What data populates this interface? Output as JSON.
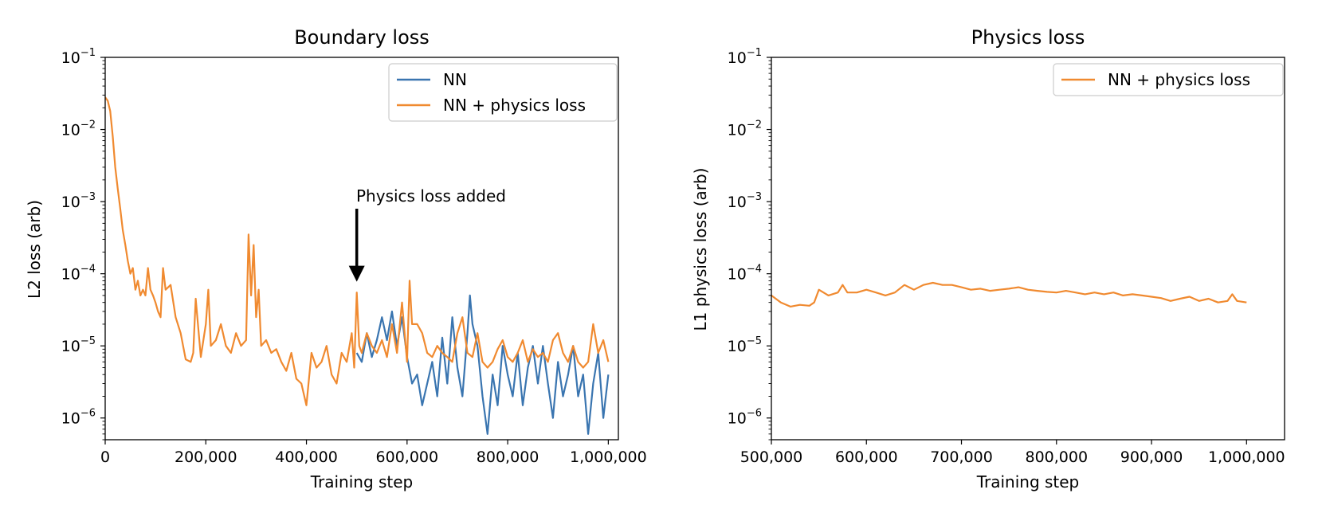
{
  "chart_data": [
    {
      "type": "line",
      "title": "Boundary loss",
      "xlabel": "Training step",
      "ylabel": "L2 loss (arb)",
      "xlim": [
        0,
        1020000
      ],
      "ylim": [
        5e-07,
        0.1
      ],
      "yscale": "log",
      "xticks": [
        0,
        200000,
        400000,
        600000,
        800000,
        1000000
      ],
      "xtick_labels": [
        "0",
        "200,000",
        "400,000",
        "600,000",
        "800,000",
        "1,000,000"
      ],
      "yticks": [
        -6,
        -5,
        -4,
        -3,
        -2,
        -1
      ],
      "ytick_base": "10",
      "legend_position": "top-right",
      "annotation": {
        "text": "Physics loss added",
        "x": 500000,
        "y": 0.0001
      },
      "series": [
        {
          "name": "NN",
          "color": "#3a75b0",
          "x": [
            500000,
            510000,
            520000,
            530000,
            540000,
            550000,
            560000,
            570000,
            580000,
            590000,
            600000,
            610000,
            620000,
            630000,
            640000,
            650000,
            660000,
            670000,
            680000,
            690000,
            700000,
            710000,
            720000,
            725000,
            730000,
            740000,
            750000,
            760000,
            770000,
            780000,
            790000,
            800000,
            810000,
            820000,
            830000,
            840000,
            850000,
            860000,
            870000,
            880000,
            890000,
            900000,
            910000,
            920000,
            930000,
            940000,
            950000,
            960000,
            970000,
            980000,
            990000,
            1000000
          ],
          "y": [
            8e-06,
            6e-06,
            1.5e-05,
            7e-06,
            1.2e-05,
            2.5e-05,
            1.2e-05,
            3e-05,
            1e-05,
            2.5e-05,
            7e-06,
            3e-06,
            4e-06,
            1.5e-06,
            3e-06,
            6e-06,
            2e-06,
            1.3e-05,
            3e-06,
            2.5e-05,
            5e-06,
            2e-06,
            1.5e-05,
            5e-05,
            2e-05,
            1e-05,
            2e-06,
            6e-07,
            4e-06,
            1.5e-06,
            1e-05,
            4e-06,
            2e-06,
            8e-06,
            1.5e-06,
            5e-06,
            1e-05,
            3e-06,
            1e-05,
            3e-06,
            1e-06,
            6e-06,
            2e-06,
            4e-06,
            1e-05,
            2e-06,
            4e-06,
            6e-07,
            3e-06,
            8e-06,
            1e-06,
            4e-06
          ]
        },
        {
          "name": "NN + physics loss",
          "color": "#f08a30",
          "x": [
            0,
            5000,
            10000,
            15000,
            20000,
            25000,
            30000,
            35000,
            40000,
            45000,
            50000,
            55000,
            60000,
            65000,
            70000,
            75000,
            80000,
            85000,
            90000,
            95000,
            100000,
            105000,
            110000,
            115000,
            120000,
            130000,
            140000,
            150000,
            160000,
            170000,
            175000,
            180000,
            190000,
            200000,
            205000,
            210000,
            220000,
            230000,
            240000,
            250000,
            260000,
            270000,
            280000,
            285000,
            290000,
            295000,
            300000,
            305000,
            310000,
            320000,
            330000,
            340000,
            350000,
            360000,
            370000,
            380000,
            390000,
            400000,
            410000,
            420000,
            430000,
            440000,
            450000,
            460000,
            470000,
            480000,
            490000,
            495000,
            500000,
            505000,
            510000,
            520000,
            530000,
            540000,
            550000,
            560000,
            570000,
            580000,
            590000,
            600000,
            605000,
            610000,
            620000,
            630000,
            640000,
            650000,
            660000,
            670000,
            680000,
            690000,
            700000,
            710000,
            720000,
            730000,
            740000,
            750000,
            760000,
            770000,
            780000,
            790000,
            800000,
            810000,
            820000,
            830000,
            840000,
            850000,
            860000,
            870000,
            880000,
            890000,
            900000,
            910000,
            920000,
            930000,
            940000,
            950000,
            960000,
            970000,
            980000,
            990000,
            1000000
          ],
          "y": [
            0.028,
            0.025,
            0.018,
            0.008,
            0.003,
            0.0015,
            0.0008,
            0.0004,
            0.00025,
            0.00015,
            0.0001,
            0.00012,
            6e-05,
            8e-05,
            5e-05,
            6e-05,
            5e-05,
            0.00012,
            6e-05,
            5e-05,
            4e-05,
            3e-05,
            2.5e-05,
            0.00012,
            6e-05,
            7e-05,
            2.5e-05,
            1.5e-05,
            6.5e-06,
            6e-06,
            8e-06,
            4.5e-05,
            7e-06,
            2e-05,
            6e-05,
            1e-05,
            1.2e-05,
            2e-05,
            1e-05,
            8e-06,
            1.5e-05,
            1e-05,
            1.2e-05,
            0.00035,
            5e-05,
            0.00025,
            2.5e-05,
            6e-05,
            1e-05,
            1.2e-05,
            8e-06,
            9e-06,
            6e-06,
            4.5e-06,
            8e-06,
            3.5e-06,
            3e-06,
            1.5e-06,
            8e-06,
            5e-06,
            6e-06,
            1e-05,
            4e-06,
            3e-06,
            8e-06,
            6e-06,
            1.5e-05,
            5e-06,
            5.5e-05,
            1e-05,
            8e-06,
            1.5e-05,
            1e-05,
            8e-06,
            1.2e-05,
            7e-06,
            2e-05,
            8e-06,
            4e-05,
            6e-06,
            8e-05,
            2e-05,
            2e-05,
            1.5e-05,
            8e-06,
            7e-06,
            1e-05,
            8e-06,
            7e-06,
            6e-06,
            1.5e-05,
            2.5e-05,
            8e-06,
            7e-06,
            1.5e-05,
            6e-06,
            5e-06,
            6e-06,
            9e-06,
            1.2e-05,
            7e-06,
            6e-06,
            8e-06,
            1.2e-05,
            6e-06,
            9e-06,
            7e-06,
            8e-06,
            6e-06,
            1.2e-05,
            1.5e-05,
            8e-06,
            6e-06,
            1e-05,
            6e-06,
            5e-06,
            6e-06,
            2e-05,
            8e-06,
            1.2e-05,
            6e-06
          ]
        }
      ]
    },
    {
      "type": "line",
      "title": "Physics loss",
      "xlabel": "Training step",
      "ylabel": "L1 physics loss (arb)",
      "xlim": [
        500000,
        1040000
      ],
      "ylim": [
        5e-07,
        0.1
      ],
      "yscale": "log",
      "xticks": [
        500000,
        600000,
        700000,
        800000,
        900000,
        1000000
      ],
      "xtick_labels": [
        "500,000",
        "600,000",
        "700,000",
        "800,000",
        "900,000",
        "1,000,000"
      ],
      "yticks": [
        -6,
        -5,
        -4,
        -3,
        -2,
        -1
      ],
      "ytick_base": "10",
      "legend_position": "top-right",
      "series": [
        {
          "name": "NN + physics loss",
          "color": "#f08a30",
          "x": [
            500000,
            510000,
            520000,
            530000,
            540000,
            545000,
            550000,
            560000,
            570000,
            575000,
            580000,
            590000,
            600000,
            610000,
            620000,
            630000,
            640000,
            650000,
            660000,
            670000,
            680000,
            690000,
            700000,
            710000,
            720000,
            730000,
            740000,
            750000,
            760000,
            770000,
            780000,
            790000,
            800000,
            810000,
            820000,
            830000,
            840000,
            850000,
            860000,
            870000,
            880000,
            890000,
            900000,
            910000,
            920000,
            930000,
            940000,
            950000,
            960000,
            970000,
            980000,
            985000,
            990000,
            1000000
          ],
          "y": [
            5e-05,
            4e-05,
            3.5e-05,
            3.7e-05,
            3.6e-05,
            4e-05,
            6e-05,
            5e-05,
            5.5e-05,
            7e-05,
            5.5e-05,
            5.5e-05,
            6e-05,
            5.5e-05,
            5e-05,
            5.5e-05,
            7e-05,
            6e-05,
            7e-05,
            7.5e-05,
            7e-05,
            7e-05,
            6.5e-05,
            6e-05,
            6.2e-05,
            5.8e-05,
            6e-05,
            6.2e-05,
            6.5e-05,
            6e-05,
            5.8e-05,
            5.6e-05,
            5.5e-05,
            5.8e-05,
            5.5e-05,
            5.2e-05,
            5.5e-05,
            5.2e-05,
            5.5e-05,
            5e-05,
            5.2e-05,
            5e-05,
            4.8e-05,
            4.6e-05,
            4.2e-05,
            4.5e-05,
            4.8e-05,
            4.2e-05,
            4.5e-05,
            4e-05,
            4.2e-05,
            5.2e-05,
            4.2e-05,
            4e-05
          ]
        }
      ]
    }
  ]
}
